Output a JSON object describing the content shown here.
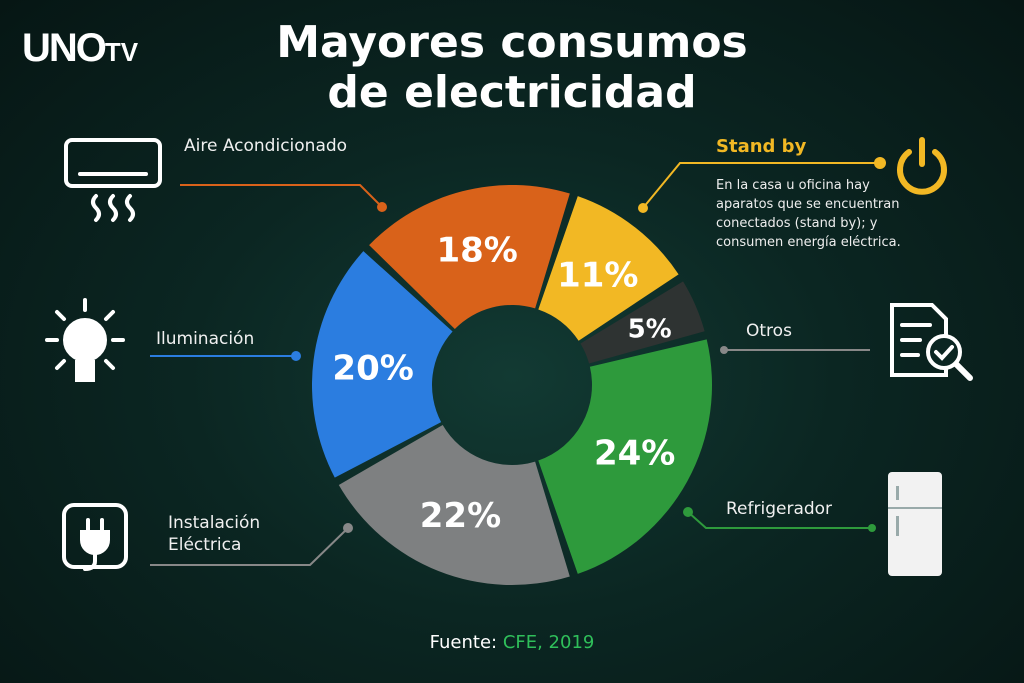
{
  "logo": {
    "main": "UNO",
    "suffix": "TV"
  },
  "title_line1": "Mayores consumos",
  "title_line2": "de electricidad",
  "footer": {
    "label": "Fuente: ",
    "source": "CFE, 2019"
  },
  "standby_note": {
    "title": "Stand by",
    "description": "En la casa u oficina hay aparatos que se encuentran conectados (stand by); y consumen energía eléctrica."
  },
  "icons": [
    "air-conditioner-icon",
    "lightbulb-icon",
    "plug-icon",
    "power-icon",
    "document-search-icon",
    "refrigerator-icon"
  ],
  "chart_data": {
    "type": "pie",
    "donut": true,
    "unit": "%",
    "categories": [
      "Stand by",
      "Otros",
      "Refrigerador",
      "Instalación Eléctrica",
      "Iluminación",
      "Aire Acondicionado"
    ],
    "values": [
      11,
      5,
      24,
      22,
      20,
      18
    ],
    "labels": [
      "11%",
      "5%",
      "24%",
      "22%",
      "20%",
      "18%"
    ],
    "colors": [
      "#f2b824",
      "#2e3332",
      "#2e9a3c",
      "#7e8081",
      "#2b7de0",
      "#d9621a"
    ],
    "legend": "leader-line labels around chart"
  }
}
